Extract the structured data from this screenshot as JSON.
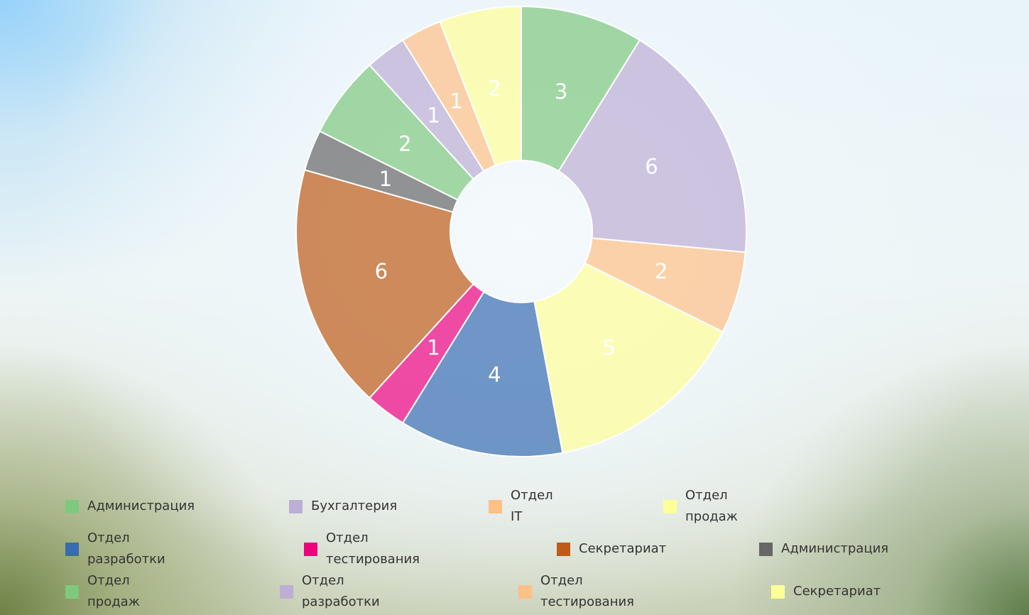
{
  "chart_data": {
    "type": "pie",
    "donut": true,
    "startAngle": 0,
    "direction": "clockwise",
    "slices": [
      {
        "label": "Администрация",
        "value": 3,
        "color": "#7fc97f"
      },
      {
        "label": "Бухгалтерия",
        "value": 6,
        "color": "#beaed4"
      },
      {
        "label": "Отдел\nIT",
        "value": 2,
        "color": "#fdc086"
      },
      {
        "label": "Отдел\nпродаж",
        "value": 5,
        "color": "#ffff99"
      },
      {
        "label": "Отдел\nразработки",
        "value": 4,
        "color": "#386cb0"
      },
      {
        "label": "Отдел\nтестирования",
        "value": 1,
        "color": "#f0027f"
      },
      {
        "label": "Секретариат",
        "value": 6,
        "color": "#bf5b17"
      },
      {
        "label": "Администрация",
        "value": 1,
        "color": "#666666"
      },
      {
        "label": "Отдел\nпродаж",
        "value": 2,
        "color": "#7fc97f"
      },
      {
        "label": "Отдел\nразработки",
        "value": 1,
        "color": "#beaed4"
      },
      {
        "label": "Отдел\nтестирования",
        "value": 1,
        "color": "#fdc086"
      },
      {
        "label": "Секретариат",
        "value": 2,
        "color": "#ffff99"
      }
    ],
    "legend_position": "bottom"
  }
}
